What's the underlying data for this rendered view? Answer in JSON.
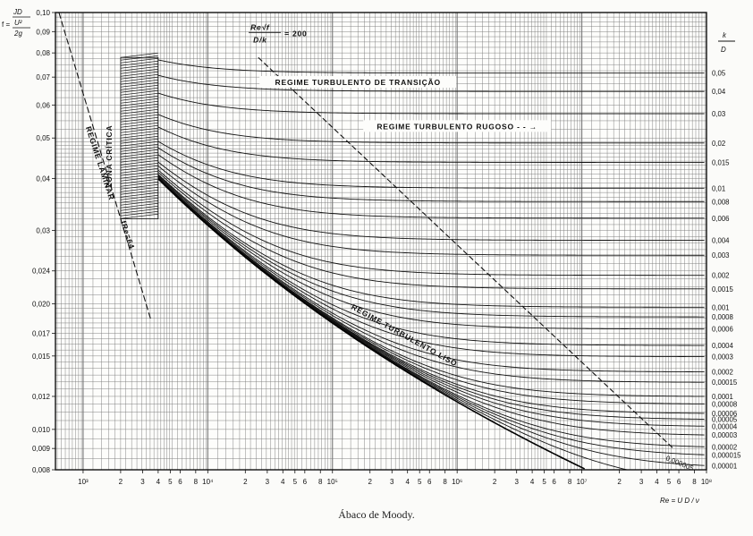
{
  "chart_data": {
    "type": "line",
    "title": "Ábaco de Moody.",
    "ylabel": "f = 2gJD/U²",
    "xlabel": "Re = UD/ν",
    "right_label": "k/D",
    "x_scale": "log",
    "y_scale": "log",
    "xlim": [
      600,
      100000000
    ],
    "ylim": [
      0.008,
      0.1
    ],
    "grid": true,
    "x_ticks": [
      {
        "v": 1000,
        "t": "10³"
      },
      {
        "v": 2000,
        "t": "2"
      },
      {
        "v": 3000,
        "t": "3"
      },
      {
        "v": 4000,
        "t": "4"
      },
      {
        "v": 5000,
        "t": "5"
      },
      {
        "v": 6000,
        "t": "6"
      },
      {
        "v": 8000,
        "t": "8"
      },
      {
        "v": 10000,
        "t": "10⁴"
      },
      {
        "v": 20000,
        "t": "2"
      },
      {
        "v": 30000,
        "t": "3"
      },
      {
        "v": 40000,
        "t": "4"
      },
      {
        "v": 50000,
        "t": "5"
      },
      {
        "v": 60000,
        "t": "6"
      },
      {
        "v": 80000,
        "t": "8"
      },
      {
        "v": 100000,
        "t": "10⁵"
      },
      {
        "v": 200000,
        "t": "2"
      },
      {
        "v": 300000,
        "t": "3"
      },
      {
        "v": 400000,
        "t": "4"
      },
      {
        "v": 500000,
        "t": "5"
      },
      {
        "v": 600000,
        "t": "6"
      },
      {
        "v": 800000,
        "t": "8"
      },
      {
        "v": 1000000,
        "t": "10⁶"
      },
      {
        "v": 2000000,
        "t": "2"
      },
      {
        "v": 3000000,
        "t": "3"
      },
      {
        "v": 4000000,
        "t": "4"
      },
      {
        "v": 5000000,
        "t": "5"
      },
      {
        "v": 6000000,
        "t": "6"
      },
      {
        "v": 8000000,
        "t": "8"
      },
      {
        "v": 10000000,
        "t": "10⁷"
      },
      {
        "v": 20000000,
        "t": "2"
      },
      {
        "v": 30000000,
        "t": "3"
      },
      {
        "v": 40000000,
        "t": "4"
      },
      {
        "v": 50000000,
        "t": "5"
      },
      {
        "v": 60000000,
        "t": "6"
      },
      {
        "v": 80000000,
        "t": "8"
      },
      {
        "v": 100000000,
        "t": "10⁸"
      }
    ],
    "y_ticks": [
      {
        "v": 0.1,
        "t": "0,10"
      },
      {
        "v": 0.09,
        "t": "0,09"
      },
      {
        "v": 0.08,
        "t": "0,08"
      },
      {
        "v": 0.07,
        "t": "0,07"
      },
      {
        "v": 0.06,
        "t": "0,06"
      },
      {
        "v": 0.05,
        "t": "0,05"
      },
      {
        "v": 0.04,
        "t": "0,04"
      },
      {
        "v": 0.03,
        "t": "0,03"
      },
      {
        "v": 0.024,
        "t": "0,024"
      },
      {
        "v": 0.02,
        "t": "0,020"
      },
      {
        "v": 0.017,
        "t": "0,017"
      },
      {
        "v": 0.015,
        "t": "0,015"
      },
      {
        "v": 0.012,
        "t": "0,012"
      },
      {
        "v": 0.01,
        "t": "0,010"
      },
      {
        "v": 0.009,
        "t": "0,009"
      },
      {
        "v": 0.008,
        "t": "0,008"
      }
    ],
    "roughness": [
      {
        "kd": 0.05,
        "label": "0,05"
      },
      {
        "kd": 0.04,
        "label": "0,04"
      },
      {
        "kd": 0.03,
        "label": "0,03"
      },
      {
        "kd": 0.02,
        "label": "0,02"
      },
      {
        "kd": 0.015,
        "label": "0,015"
      },
      {
        "kd": 0.01,
        "label": "0,01"
      },
      {
        "kd": 0.008,
        "label": "0,008"
      },
      {
        "kd": 0.006,
        "label": "0,006"
      },
      {
        "kd": 0.004,
        "label": "0,004"
      },
      {
        "kd": 0.003,
        "label": "0,003"
      },
      {
        "kd": 0.002,
        "label": "0,002"
      },
      {
        "kd": 0.0015,
        "label": "0,0015"
      },
      {
        "kd": 0.001,
        "label": "0,001"
      },
      {
        "kd": 0.0008,
        "label": "0,0008"
      },
      {
        "kd": 0.0006,
        "label": "0,0006"
      },
      {
        "kd": 0.0004,
        "label": "0,0004"
      },
      {
        "kd": 0.0003,
        "label": "0,0003"
      },
      {
        "kd": 0.0002,
        "label": "0,0002"
      },
      {
        "kd": 0.00015,
        "label": "0,00015"
      },
      {
        "kd": 0.0001,
        "label": "0,0001"
      },
      {
        "kd": 8e-05,
        "label": "0,00008"
      },
      {
        "kd": 6e-05,
        "label": "0,00006"
      },
      {
        "kd": 5e-05,
        "label": "0,00005"
      },
      {
        "kd": 4e-05,
        "label": "0,00004"
      },
      {
        "kd": 3e-05,
        "label": "0,00003"
      },
      {
        "kd": 2e-05,
        "label": "0,00002"
      },
      {
        "kd": 1.5e-05,
        "label": "0,000015"
      },
      {
        "kd": 1e-05,
        "label": "0,00001"
      },
      {
        "kd": 5e-06,
        "label": "0,000005"
      }
    ],
    "laminar": {
      "formula": "f Re = 64",
      "re_range": [
        600,
        3500
      ]
    },
    "transition_boundary": {
      "label_num": "Re√f",
      "label_den": "D/k",
      "label_val": "= 200"
    },
    "annotations": {
      "transicao": "REGIME TURBULENTO DE TRANSIÇÃO",
      "rugoso": "REGIME TURBULENTO RUGOSO",
      "liso": "REGIME TURBULENTO LISO",
      "laminar": "REGIME LAMINAR",
      "laminar_formula": "fRe=64",
      "critica": "ZONA CRÍTICA",
      "smallest_curve": "0,000005"
    },
    "axis_label_parts": {
      "f_prefix": "f =",
      "f_num": "JD",
      "f_num_prefix": "2g",
      "f_den1": "U²",
      "f_den2": "2g",
      "k": "k",
      "D": "D",
      "re": "Re = U D / ν"
    }
  }
}
